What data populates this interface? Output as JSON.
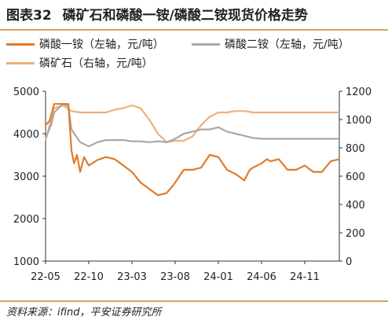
{
  "header": {
    "figure_no": "图表32",
    "title": "磷矿石和磷酸一铵/磷酸二铵现货价格走势"
  },
  "source": "资料来源：ifind，平安证券研究所",
  "colors": {
    "map": "#e07b2a",
    "dap": "#a8a8a8",
    "rock": "#f0b07a",
    "rule": "#d9a066"
  },
  "chart_data": {
    "type": "line",
    "x_tick_labels": [
      "22-05",
      "22-10",
      "23-03",
      "23-08",
      "24-01",
      "24-06",
      "24-11"
    ],
    "x_ticks": [
      "2022-05",
      "2022-10",
      "2023-03",
      "2023-08",
      "2024-01",
      "2024-06",
      "2024-11"
    ],
    "x_range": [
      "2022-05",
      "2025-03"
    ],
    "left_axis": {
      "ylim": [
        1000,
        5000
      ],
      "ticks": [
        1000,
        2000,
        3000,
        4000,
        5000
      ]
    },
    "right_axis": {
      "ylim": [
        0,
        1200
      ],
      "ticks": [
        0,
        200,
        400,
        600,
        800,
        1000,
        1200
      ]
    },
    "grid": false,
    "legend_position": "top",
    "series": [
      {
        "name": "磷酸一铵（左轴，元/吨）",
        "axis": "left",
        "color": "#e07b2a",
        "points": [
          [
            "2022-05",
            4200
          ],
          [
            "2022-05-15",
            4300
          ],
          [
            "2022-06",
            4700
          ],
          [
            "2022-07",
            4700
          ],
          [
            "2022-07-20",
            4700
          ],
          [
            "2022-08",
            3600
          ],
          [
            "2022-08-10",
            3300
          ],
          [
            "2022-08-20",
            3500
          ],
          [
            "2022-09",
            3100
          ],
          [
            "2022-09-15",
            3450
          ],
          [
            "2022-10",
            3250
          ],
          [
            "2022-11",
            3380
          ],
          [
            "2022-12",
            3450
          ],
          [
            "2023-01",
            3400
          ],
          [
            "2023-02",
            3250
          ],
          [
            "2023-03",
            3100
          ],
          [
            "2023-04",
            2850
          ],
          [
            "2023-05",
            2700
          ],
          [
            "2023-06",
            2550
          ],
          [
            "2023-07",
            2600
          ],
          [
            "2023-07-20",
            2750
          ],
          [
            "2023-08",
            2850
          ],
          [
            "2023-09",
            3150
          ],
          [
            "2023-10",
            3150
          ],
          [
            "2023-11",
            3200
          ],
          [
            "2023-12",
            3500
          ],
          [
            "2024-01",
            3450
          ],
          [
            "2024-02",
            3150
          ],
          [
            "2024-03",
            3050
          ],
          [
            "2024-04",
            2900
          ],
          [
            "2024-04-20",
            3150
          ],
          [
            "2024-05",
            3200
          ],
          [
            "2024-06",
            3300
          ],
          [
            "2024-06-20",
            3400
          ],
          [
            "2024-07",
            3350
          ],
          [
            "2024-08",
            3400
          ],
          [
            "2024-09",
            3150
          ],
          [
            "2024-10",
            3150
          ],
          [
            "2024-11",
            3250
          ],
          [
            "2024-12",
            3100
          ],
          [
            "2025-01",
            3100
          ],
          [
            "2025-02",
            3350
          ],
          [
            "2025-03",
            3400
          ]
        ]
      },
      {
        "name": "磷酸二铵（左轴，元/吨）",
        "axis": "left",
        "color": "#a8a8a8",
        "points": [
          [
            "2022-05",
            3900
          ],
          [
            "2022-05-20",
            4200
          ],
          [
            "2022-06",
            4500
          ],
          [
            "2022-07",
            4700
          ],
          [
            "2022-07-20",
            4650
          ],
          [
            "2022-08",
            4100
          ],
          [
            "2022-09",
            3800
          ],
          [
            "2022-10",
            3700
          ],
          [
            "2022-11",
            3800
          ],
          [
            "2022-12",
            3850
          ],
          [
            "2023-01",
            3850
          ],
          [
            "2023-02",
            3850
          ],
          [
            "2023-03",
            3820
          ],
          [
            "2023-04",
            3820
          ],
          [
            "2023-05",
            3800
          ],
          [
            "2023-06",
            3820
          ],
          [
            "2023-07",
            3800
          ],
          [
            "2023-08",
            3880
          ],
          [
            "2023-09",
            4000
          ],
          [
            "2023-10",
            4050
          ],
          [
            "2023-11",
            4100
          ],
          [
            "2023-12",
            4100
          ],
          [
            "2024-01",
            4150
          ],
          [
            "2024-02",
            4050
          ],
          [
            "2024-03",
            4000
          ],
          [
            "2024-04",
            3950
          ],
          [
            "2024-05",
            3900
          ],
          [
            "2024-06",
            3880
          ],
          [
            "2024-08",
            3880
          ],
          [
            "2024-10",
            3880
          ],
          [
            "2024-12",
            3880
          ],
          [
            "2025-03",
            3880
          ]
        ]
      },
      {
        "name": "磷矿石（右轴，元/吨）",
        "axis": "right",
        "color": "#f0b07a",
        "points": [
          [
            "2022-05",
            850
          ],
          [
            "2022-05-20",
            1000
          ],
          [
            "2022-06",
            1080
          ],
          [
            "2022-07",
            1100
          ],
          [
            "2022-08",
            1060
          ],
          [
            "2022-09",
            1050
          ],
          [
            "2022-10",
            1050
          ],
          [
            "2022-11",
            1050
          ],
          [
            "2022-12",
            1050
          ],
          [
            "2023-01",
            1070
          ],
          [
            "2023-02",
            1080
          ],
          [
            "2023-03",
            1100
          ],
          [
            "2023-04",
            1080
          ],
          [
            "2023-05",
            1000
          ],
          [
            "2023-06",
            900
          ],
          [
            "2023-07",
            840
          ],
          [
            "2023-08",
            850
          ],
          [
            "2023-09",
            850
          ],
          [
            "2023-10",
            880
          ],
          [
            "2023-11",
            960
          ],
          [
            "2023-12",
            1020
          ],
          [
            "2024-01",
            1050
          ],
          [
            "2024-02",
            1050
          ],
          [
            "2024-03",
            1060
          ],
          [
            "2024-04",
            1060
          ],
          [
            "2024-05",
            1050
          ],
          [
            "2024-06",
            1050
          ],
          [
            "2024-08",
            1050
          ],
          [
            "2024-10",
            1050
          ],
          [
            "2024-12",
            1050
          ],
          [
            "2025-03",
            1050
          ]
        ]
      }
    ]
  }
}
